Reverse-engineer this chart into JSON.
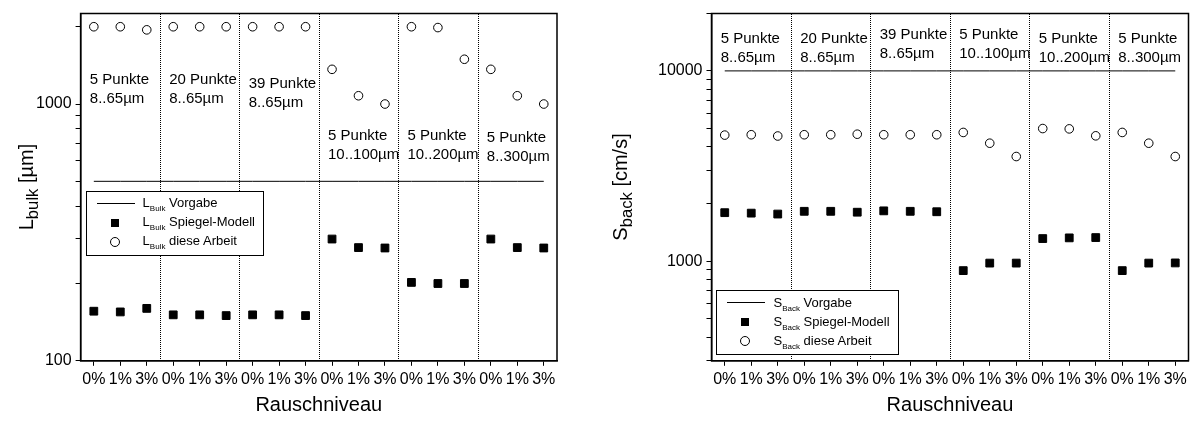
{
  "chart_data": [
    {
      "type": "scatter",
      "xlabel": "Rauschniveau",
      "ylabel": "L$_{bulk}$ [µm]",
      "log": true,
      "grid": false,
      "legend": "left",
      "categories": [
        "0%",
        "1%",
        "3%",
        "0%",
        "1%",
        "3%",
        "0%",
        "1%",
        "3%",
        "0%",
        "1%",
        "3%",
        "0%",
        "1%",
        "3%",
        "0%",
        "1%",
        "3%"
      ],
      "ylim": [
        100,
        2250
      ],
      "yticks": [
        100,
        {
          "value": 200,
          "label": null
        },
        {
          "value": 300,
          "label": null
        },
        {
          "value": 400,
          "label": null
        },
        {
          "value": 500,
          "label": null
        },
        {
          "value": 600,
          "label": null
        },
        {
          "value": 700,
          "label": null
        },
        {
          "value": 800,
          "label": null
        },
        {
          "value": 900,
          "label": null
        },
        1000,
        {
          "value": 2000,
          "label": null
        }
      ],
      "series": [
        {
          "name": "L$_{Bulk}$ Vorgabe",
          "type": "line",
          "marker": "none",
          "color": "#000000",
          "values": [
            500,
            500,
            500,
            500,
            500,
            500,
            500,
            500,
            500,
            500,
            500,
            500,
            500,
            500,
            500,
            500,
            500,
            500
          ]
        },
        {
          "name": "L$_{Bulk}$ Spiegel-Modell",
          "type": "scatter",
          "marker": "square",
          "color": "#000000",
          "values": [
            156,
            155,
            160,
            151,
            151,
            150,
            151,
            151,
            150,
            298,
            276,
            275,
            202,
            200,
            200,
            298,
            276,
            275
          ]
        },
        {
          "name": "L$_{Bulk}$ diese Arbeit",
          "type": "scatter",
          "marker": "circle",
          "color": "#000000",
          "values": [
            2000,
            2000,
            1945,
            2000,
            2000,
            2000,
            2000,
            2000,
            2000,
            1365,
            1077,
            1000,
            2000,
            1985,
            1494,
            1365,
            1077,
            1000
          ]
        }
      ],
      "annotations": [
        "5 Punkte\n8..65µm",
        "20 Punkte\n8..65µm",
        "39 Punkte\n8..65µm",
        "5 Punkte\n10..100µm",
        "5 Punkte\n10..200µm",
        "5 Punkte\n8..300µm"
      ]
    },
    {
      "type": "scatter",
      "xlabel": "Rauschniveau",
      "ylabel": "S$_{back}$ [cm/s]",
      "log": true,
      "grid": false,
      "legend": "bottom left",
      "categories": [
        "0%",
        "1%",
        "3%",
        "0%",
        "1%",
        "3%",
        "0%",
        "1%",
        "3%",
        "0%",
        "1%",
        "3%",
        "0%",
        "1%",
        "3%",
        "0%",
        "1%",
        "3%"
      ],
      "ylim": [
        300,
        20000
      ],
      "yticks": [
        {
          "value": 300,
          "label": null
        },
        {
          "value": 400,
          "label": null
        },
        {
          "value": 500,
          "label": null
        },
        {
          "value": 600,
          "label": null
        },
        {
          "value": 700,
          "label": null
        },
        {
          "value": 800,
          "label": null
        },
        {
          "value": 900,
          "label": null
        },
        1000,
        {
          "value": 2000,
          "label": null
        },
        {
          "value": 3000,
          "label": null
        },
        {
          "value": 4000,
          "label": null
        },
        {
          "value": 5000,
          "label": null
        },
        {
          "value": 6000,
          "label": null
        },
        {
          "value": 7000,
          "label": null
        },
        {
          "value": 8000,
          "label": null
        },
        {
          "value": 9000,
          "label": null
        },
        10000,
        {
          "value": 20000,
          "label": null
        }
      ],
      "series": [
        {
          "name": "S$_{Back}$ Vorgabe",
          "type": "line",
          "marker": "none",
          "color": "#000000",
          "values": [
            10000,
            10000,
            10000,
            10000,
            10000,
            10000,
            10000,
            10000,
            10000,
            10000,
            10000,
            10000,
            10000,
            10000,
            10000,
            10000,
            10000,
            10000
          ]
        },
        {
          "name": "S$_{Back}$ Spiegel-Modell",
          "type": "scatter",
          "marker": "square",
          "color": "#000000",
          "values": [
            1800,
            1790,
            1770,
            1830,
            1830,
            1810,
            1840,
            1830,
            1820,
            893,
            978,
            978,
            1316,
            1327,
            1332,
            893,
            978,
            980
          ]
        },
        {
          "name": "S$_{Back}$ diese Arbeit",
          "type": "scatter",
          "marker": "circle",
          "color": "#000000",
          "values": [
            4600,
            4620,
            4550,
            4620,
            4620,
            4650,
            4620,
            4620,
            4620,
            4750,
            4170,
            3550,
            4980,
            4960,
            4560,
            4750,
            4170,
            3550
          ]
        }
      ],
      "annotations": [
        "5 Punkte\n8..65µm",
        "20 Punkte\n8..65µm",
        "39 Punkte\n8..65µm",
        "5 Punkte\n10..100µm",
        "5 Punkte\n10..200µm",
        "5 Punkte\n8..300µm"
      ]
    }
  ]
}
